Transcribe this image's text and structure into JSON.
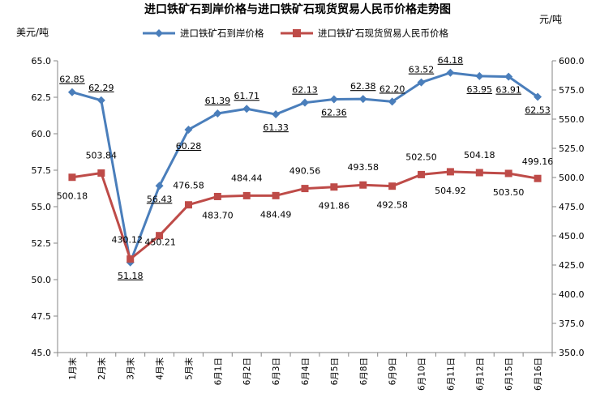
{
  "chart_data": {
    "type": "line",
    "title": "进口铁矿石到岸价格与进口铁矿石现货贸易人民币价格走势图",
    "ylabel_left": "美元/吨",
    "ylabel_right": "元/吨",
    "categories": [
      "1月末",
      "2月末",
      "3月末",
      "4月末",
      "5月末",
      "6月1日",
      "6月2日",
      "6月3日",
      "6月4日",
      "6月5日",
      "6月8日",
      "6月9日",
      "6月10日",
      "6月11日",
      "6月12日",
      "6月15日",
      "6月16日"
    ],
    "y_left": {
      "min": 45.0,
      "max": 65.0,
      "step": 2.5,
      "ticks": [
        "45.0",
        "47.5",
        "50.0",
        "52.5",
        "55.0",
        "57.5",
        "60.0",
        "62.5",
        "65.0"
      ]
    },
    "y_right": {
      "min": 350.0,
      "max": 600.0,
      "step": 25,
      "ticks": [
        "350.0",
        "375.0",
        "400.0",
        "425.0",
        "450.0",
        "475.0",
        "500.0",
        "525.0",
        "550.0",
        "575.0",
        "600.0"
      ]
    },
    "grid": false,
    "legend_position": "top",
    "series": [
      {
        "name": "进口铁矿石到岸价格",
        "axis": "left",
        "color": "#4a7ebb",
        "marker": "diamond",
        "values": [
          62.85,
          62.29,
          51.18,
          56.43,
          60.28,
          61.39,
          61.71,
          61.33,
          62.13,
          62.36,
          62.38,
          62.2,
          63.52,
          64.18,
          63.95,
          63.91,
          62.53
        ],
        "labels": [
          "62.85",
          "62.29",
          "51.18",
          "56.43",
          "60.28",
          "61.39",
          "61.71",
          "61.33",
          "62.13",
          "62.36",
          "62.38",
          "62.20",
          "63.52",
          "64.18",
          "63.95",
          "63.91",
          "62.53"
        ]
      },
      {
        "name": "进口铁矿石现货贸易人民币价格",
        "axis": "right",
        "color": "#be4b48",
        "marker": "square",
        "values": [
          500.18,
          503.84,
          430.12,
          450.21,
          476.58,
          483.7,
          484.44,
          484.49,
          490.56,
          491.86,
          493.58,
          492.58,
          502.5,
          504.92,
          504.18,
          503.5,
          499.16
        ],
        "labels": [
          "500.18",
          "503.84",
          "430.12",
          "450.21",
          "476.58",
          "483.70",
          "484.44",
          "484.49",
          "490.56",
          "491.86",
          "493.58",
          "492.58",
          "502.50",
          "504.92",
          "504.18",
          "503.50",
          "499.16"
        ]
      }
    ]
  }
}
